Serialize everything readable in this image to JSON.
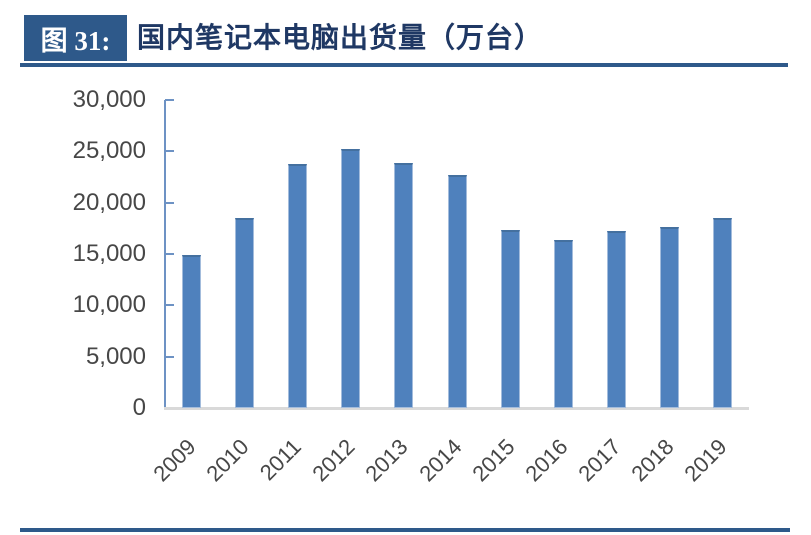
{
  "figure": {
    "label": "图 31:",
    "title": "国内笔记本电脑出货量（万台）"
  },
  "colors": {
    "header_blue": "#2E598A",
    "title_text": "#1F3864",
    "bar_fill": "#4F81BD",
    "axis_line": "#6D92C4",
    "baseline_gray": "#D9D9D9",
    "tick_label_gray": "#474747"
  },
  "chart_data": {
    "type": "bar",
    "title": "国内笔记本电脑出货量（万台）",
    "categories": [
      "2009",
      "2010",
      "2011",
      "2012",
      "2013",
      "2014",
      "2015",
      "2016",
      "2017",
      "2018",
      "2019"
    ],
    "values": [
      14900,
      18500,
      23800,
      25200,
      23900,
      22700,
      17300,
      16400,
      17200,
      17600,
      18500
    ],
    "xlabel": "",
    "ylabel": "",
    "ylim": [
      0,
      30000
    ],
    "ytick_interval": 5000,
    "ytick_labels": [
      "0",
      "5,000",
      "10,000",
      "15,000",
      "20,000",
      "25,000",
      "30,000"
    ],
    "grid": false,
    "legend_position": "none",
    "x_label_rotation_deg": -45
  }
}
